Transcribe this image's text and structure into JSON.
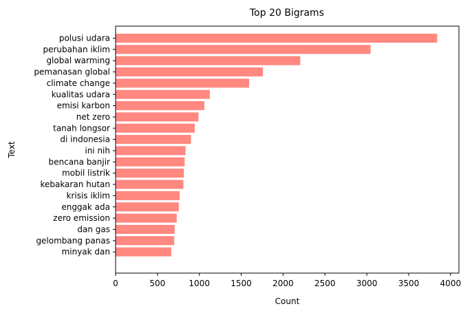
{
  "chart_data": {
    "type": "bar",
    "orientation": "horizontal",
    "title": "Top 20 Bigrams",
    "xlabel": "Count",
    "ylabel": "Text",
    "categories": [
      "polusi udara",
      "perubahan iklim",
      "global warming",
      "pemanasan global",
      "climate change",
      "kualitas udara",
      "emisi karbon",
      "net zero",
      "tanah longsor",
      "di indonesia",
      "ini nih",
      "bencana banjir",
      "mobil listrik",
      "kebakaran hutan",
      "krisis iklim",
      "enggak ada",
      "zero emission",
      "dan gas",
      "gelombang panas",
      "minyak dan"
    ],
    "values": [
      3840,
      3045,
      2205,
      1760,
      1595,
      1125,
      1060,
      990,
      945,
      900,
      835,
      825,
      815,
      810,
      765,
      755,
      730,
      705,
      700,
      665
    ],
    "xlim": [
      0,
      4100
    ],
    "xticks": [
      0,
      500,
      1000,
      1500,
      2000,
      2500,
      3000,
      3500,
      4000
    ],
    "xtick_labels": [
      "0",
      "500",
      "1000",
      "1500",
      "2000",
      "2500",
      "3000",
      "3500",
      "4000"
    ],
    "bar_color": "#ff8880",
    "grid": false
  }
}
